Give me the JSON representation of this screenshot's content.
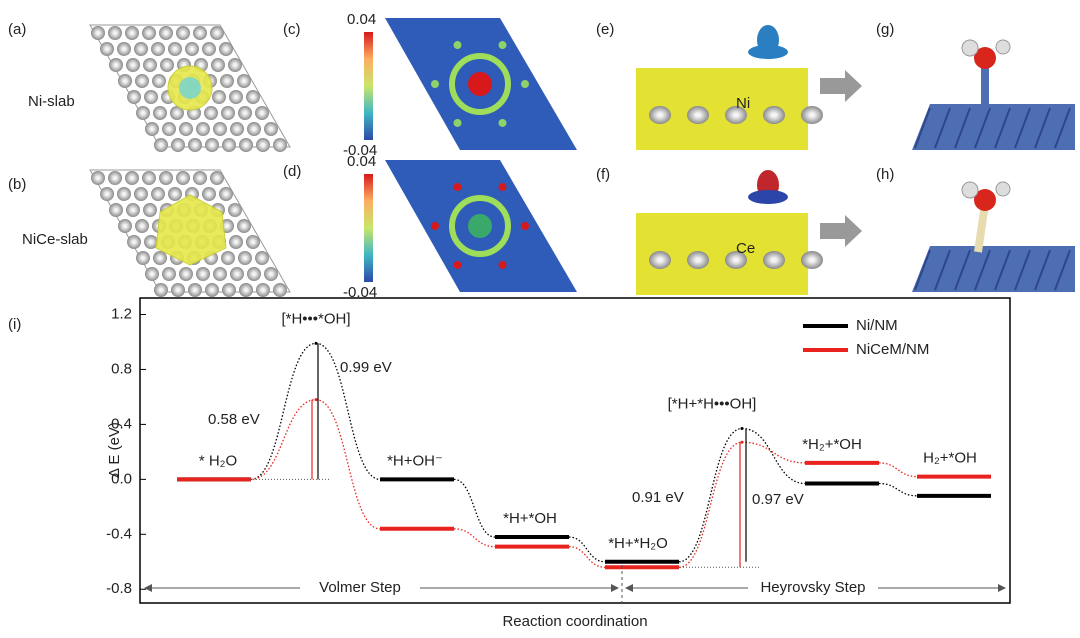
{
  "panels": {
    "labels": [
      "(a)",
      "(b)",
      "(c)",
      "(d)",
      "(e)",
      "(f)",
      "(g)",
      "(h)"
    ],
    "slab_labels": [
      "Ni-slab",
      "NiCe-slab"
    ],
    "colorbar_ticks": [
      "0.04",
      "-0.04"
    ],
    "atom_labels": [
      "Ni",
      "Ce"
    ]
  },
  "chart_data": {
    "type": "energy",
    "panel_label": "(i)",
    "xlabel": "Reaction coordination",
    "ylabel": "Δ E (eV)",
    "categories": [
      "* H₂O",
      "[*H•••*OH]",
      "*H+OH⁻",
      "*H+*OH",
      "*H+*H₂O",
      "[*H+*H•••OH]",
      "*H₂+*OH",
      "H₂+*OH"
    ],
    "series": [
      {
        "name": "Ni/NM",
        "color": "#000000",
        "values": [
          0,
          0.99,
          0,
          -0.42,
          -0.6,
          0.37,
          -0.03,
          -0.12
        ]
      },
      {
        "name": "NiCeM/NM",
        "color": "#e8231d",
        "values": [
          0,
          0.58,
          -0.36,
          -0.49,
          -0.64,
          0.27,
          0.12,
          0.02
        ]
      }
    ],
    "annotations": [
      {
        "text": "0.99 eV",
        "color": "#000000"
      },
      {
        "text": "0.58 eV",
        "color": "#e8231d"
      },
      {
        "text": "0.97 eV",
        "color": "#000000"
      },
      {
        "text": "0.91 eV",
        "color": "#e8231d"
      }
    ],
    "steps": [
      "Volmer Step",
      "Heyrovsky Step"
    ],
    "ylim": [
      -0.9,
      1.32
    ],
    "yticks": [
      1.2,
      0.8,
      0.4,
      {
        "value": 0,
        "label": "0.0"
      },
      -0.4,
      -0.8
    ],
    "legend": "upper right"
  }
}
